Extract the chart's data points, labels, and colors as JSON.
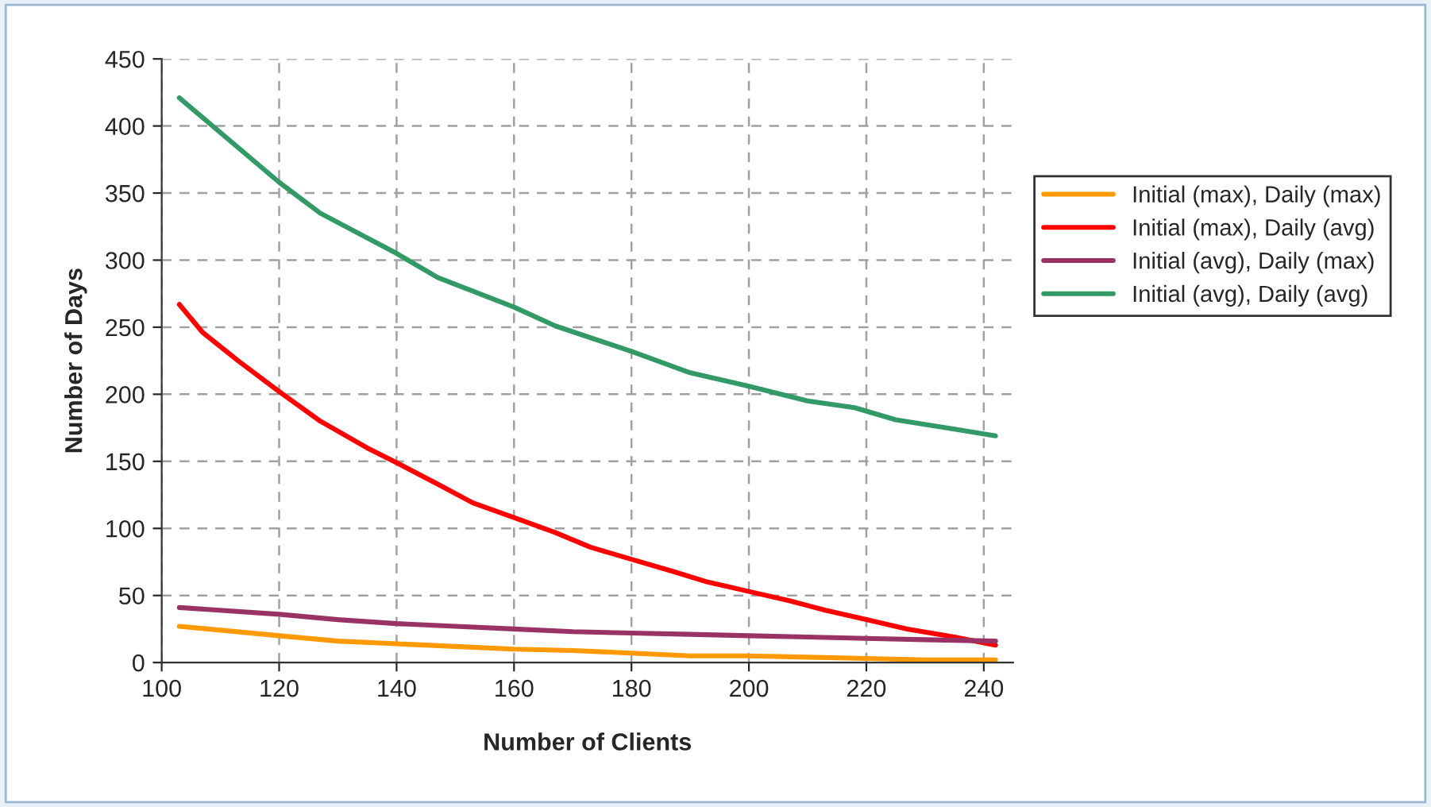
{
  "chart_data": {
    "type": "line",
    "xlabel": "Number of Clients",
    "ylabel": "Number of Days",
    "xlim": [
      100,
      245
    ],
    "xticks": [
      100,
      120,
      140,
      160,
      180,
      200,
      220,
      240
    ],
    "ylim": [
      0,
      450
    ],
    "yticks": [
      0,
      50,
      100,
      150,
      200,
      250,
      300,
      350,
      400,
      450
    ],
    "grid": true,
    "legend": "right",
    "marker": "none",
    "line_style": "solid",
    "series": [
      {
        "name": "Initial (max), Daily (max)",
        "color": "#ff9900",
        "x": [
          103,
          120,
          130,
          140,
          150,
          160,
          170,
          180,
          190,
          200,
          210,
          220,
          230,
          242
        ],
        "values": [
          27,
          20,
          16,
          14,
          12,
          10,
          9,
          7,
          5,
          5,
          4,
          3,
          2,
          2
        ]
      },
      {
        "name": "Initial (max), Daily (avg)",
        "color": "#ff0000",
        "x": [
          103,
          107,
          113,
          120,
          127,
          135,
          140,
          147,
          153,
          160,
          167,
          173,
          180,
          187,
          193,
          200,
          207,
          213,
          220,
          227,
          235,
          242
        ],
        "values": [
          267,
          246,
          225,
          202,
          180,
          160,
          149,
          133,
          119,
          108,
          97,
          86,
          77,
          68,
          60,
          53,
          46,
          39,
          32,
          25,
          19,
          13
        ]
      },
      {
        "name": "Initial (avg), Daily (max)",
        "color": "#993366",
        "x": [
          103,
          120,
          130,
          140,
          150,
          160,
          170,
          180,
          190,
          200,
          210,
          220,
          230,
          242
        ],
        "values": [
          41,
          36,
          32,
          29,
          27,
          25,
          23,
          22,
          21,
          20,
          19,
          18,
          17,
          16
        ]
      },
      {
        "name": "Initial (avg), Daily (avg)",
        "color": "#339966",
        "x": [
          103,
          120,
          127,
          140,
          147,
          160,
          167,
          180,
          190,
          200,
          210,
          218,
          225,
          235,
          242
        ],
        "values": [
          421,
          358,
          335,
          305,
          287,
          265,
          251,
          232,
          216,
          206,
          195,
          190,
          181,
          174,
          169
        ]
      }
    ]
  }
}
